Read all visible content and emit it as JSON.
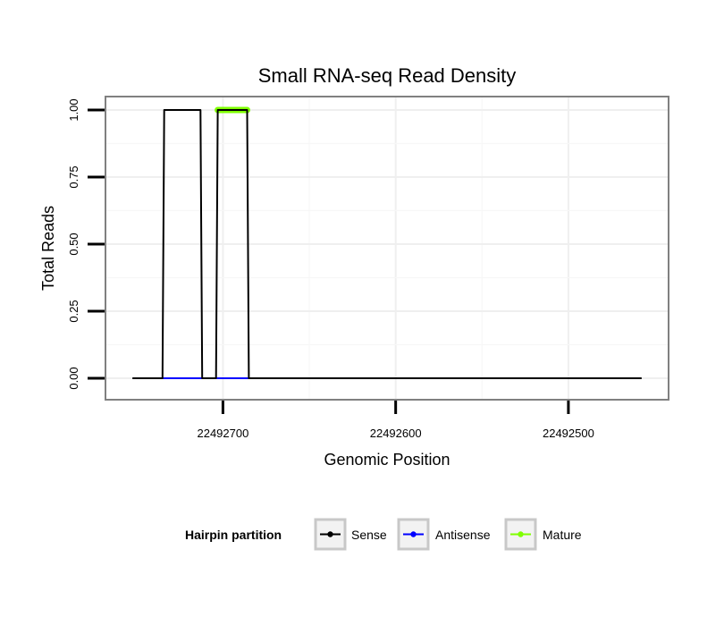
{
  "chart_data": {
    "type": "line",
    "title": "Small RNA-seq Read Density",
    "xlabel": "Genomic Position",
    "ylabel": "Total Reads",
    "xlim": [
      22492768,
      22492442
    ],
    "x_reversed": true,
    "ylim": [
      -0.08,
      1.05
    ],
    "x_ticks": [
      22492700,
      22492600,
      22492500
    ],
    "y_ticks": [
      0.0,
      0.25,
      0.5,
      0.75,
      1.0
    ],
    "y_tick_labels": [
      "0.00",
      "0.25",
      "0.50",
      "0.75",
      "1.00"
    ],
    "grid": true,
    "legend": {
      "title": "Hairpin partition",
      "position": "bottom",
      "entries": [
        "Sense",
        "Antisense",
        "Mature"
      ]
    },
    "series": [
      {
        "name": "Sense",
        "color": "#000000",
        "x": [
          22492752,
          22492735,
          22492734,
          22492713,
          22492712,
          22492704,
          22492703,
          22492686,
          22492685,
          22492458
        ],
        "y": [
          0,
          0,
          1,
          1,
          0,
          0,
          1,
          1,
          0,
          0
        ]
      },
      {
        "name": "Antisense",
        "color": "#0000ff",
        "x": [
          22492735,
          22492685
        ],
        "y": [
          0,
          0
        ]
      },
      {
        "name": "Mature",
        "color": "#7fff00",
        "x": [
          22492703,
          22492686
        ],
        "y": [
          1,
          1
        ]
      }
    ]
  }
}
